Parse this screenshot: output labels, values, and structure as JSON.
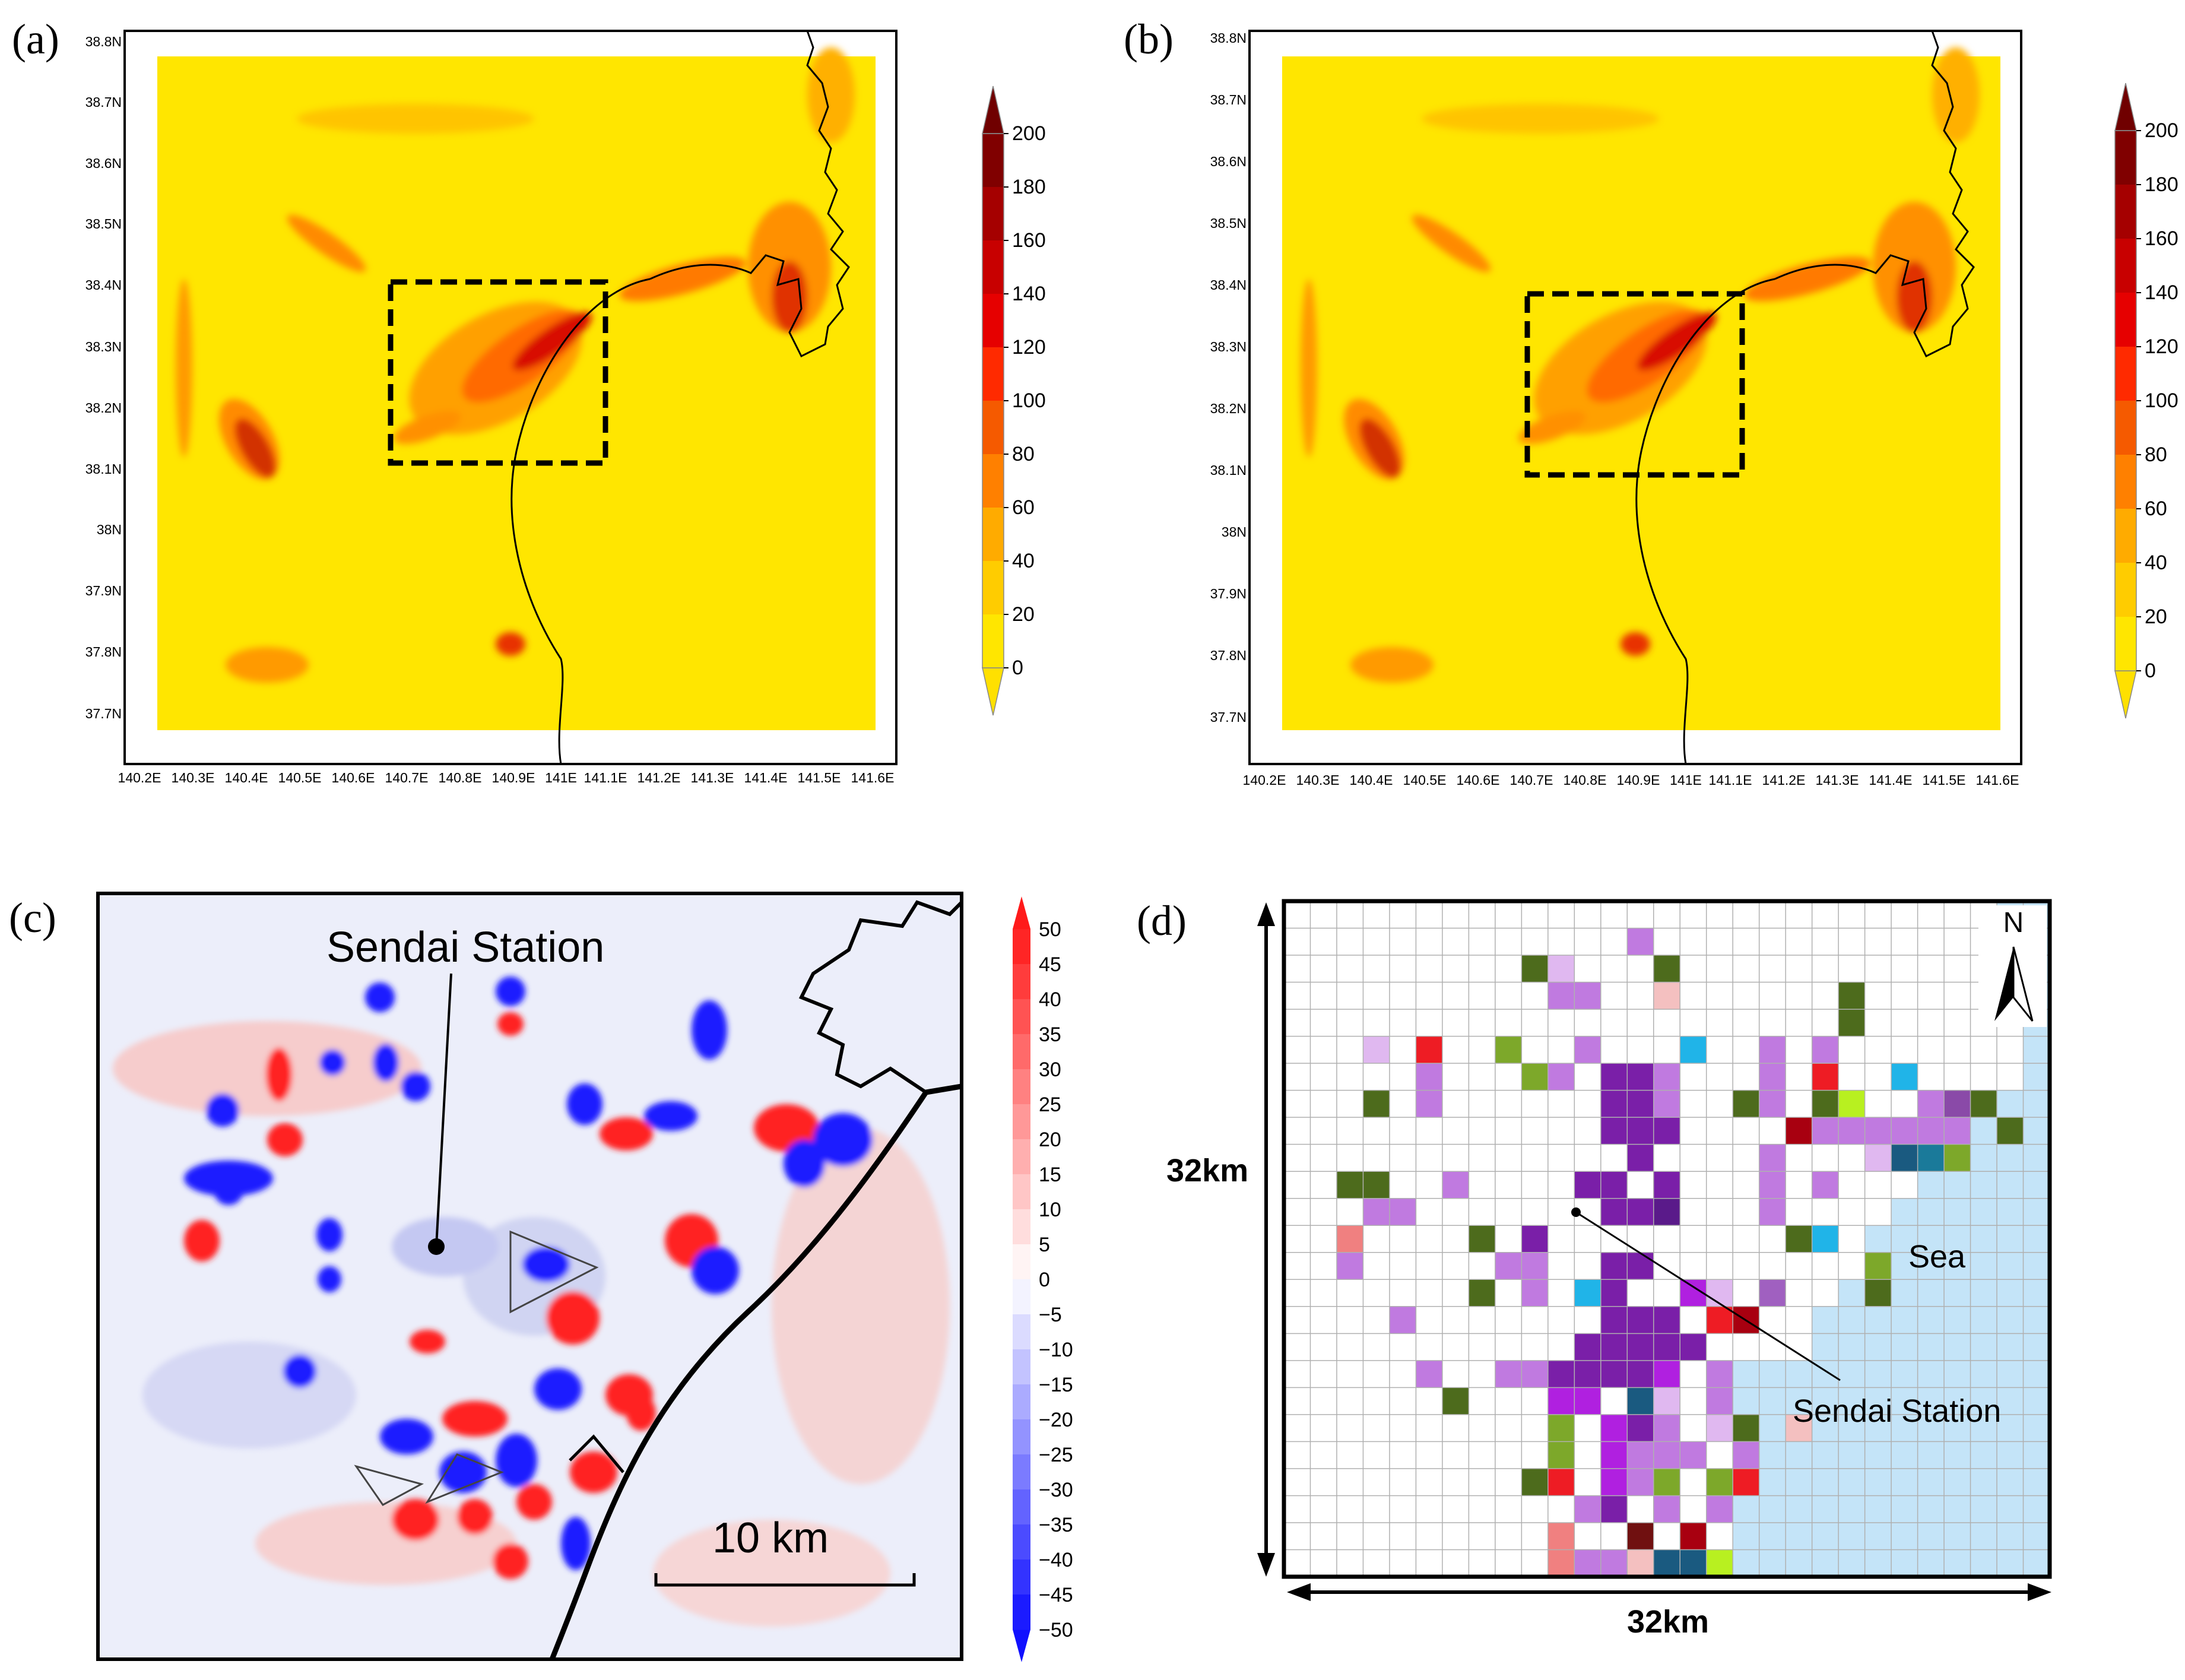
{
  "panels": {
    "a": {
      "label": "(a)"
    },
    "b": {
      "label": "(b)"
    },
    "c": {
      "label": "(c)"
    },
    "d": {
      "label": "(d)"
    }
  },
  "map": {
    "lat_labels": [
      "38.8N",
      "38.7N",
      "38.6N",
      "38.5N",
      "38.4N",
      "38.3N",
      "38.2N",
      "38.1N",
      "38N",
      "37.9N",
      "37.8N",
      "37.7N"
    ],
    "lon_labels": [
      "140.2E",
      "140.3E",
      "140.4E",
      "140.5E",
      "140.6E",
      "140.7E",
      "140.8E",
      "140.9E",
      "141E",
      "141.1E",
      "141.2E",
      "141.3E",
      "141.4E",
      "141.5E",
      "141.6E"
    ],
    "colorbar": {
      "ticks": [
        "0",
        "20",
        "40",
        "60",
        "80",
        "100",
        "120",
        "140",
        "160",
        "180",
        "200"
      ],
      "colors": [
        "#ffe600",
        "#ffcc00",
        "#ffab00",
        "#ff8000",
        "#f55a00",
        "#ff2a00",
        "#e60000",
        "#c80000",
        "#a50000",
        "#800000"
      ]
    },
    "colors": {
      "background": "#ffe600",
      "warm": "#ff8c00",
      "hot": "#e01000",
      "hotter": "#900000"
    }
  },
  "panel_c": {
    "station_label": "Sendai Station",
    "scale_label": "10 km",
    "colorbar": {
      "ticks": [
        "50",
        "45",
        "40",
        "35",
        "30",
        "25",
        "20",
        "15",
        "10",
        "5",
        "0",
        "−5",
        "−10",
        "−15",
        "−20",
        "−25",
        "−30",
        "−35",
        "−40",
        "−45",
        "−50"
      ]
    },
    "colors": {
      "pos": "#ff2020",
      "neg": "#1a1aff",
      "pos_light": "#f8c8c8",
      "neg_light": "#d0d4f4"
    }
  },
  "panel_d": {
    "north_label": "N",
    "sea_label": "Sea",
    "station_label": "Sendai Station",
    "dim_vertical": "32km",
    "dim_horizontal": "32km",
    "colors": {
      "sea": "#c4e4f8",
      "grid": "#b0b0b0"
    }
  }
}
